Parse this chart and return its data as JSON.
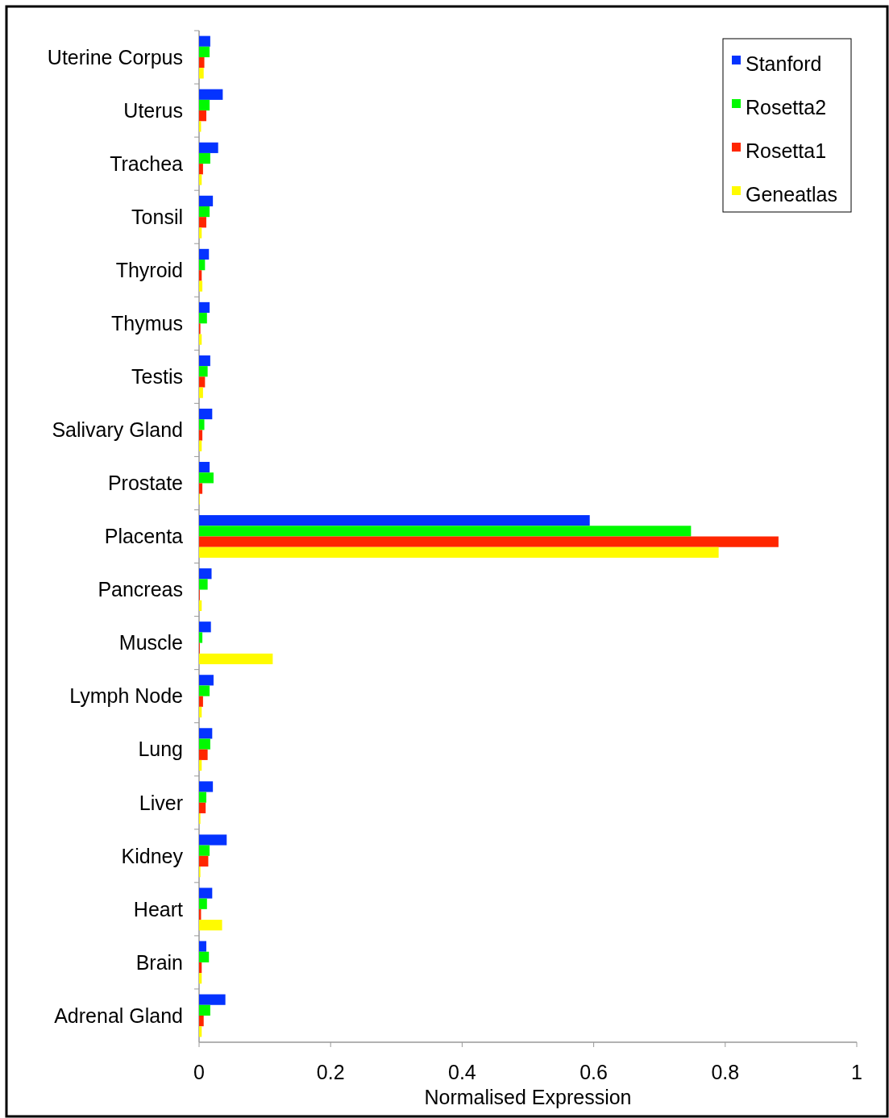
{
  "chart_data": {
    "type": "bar",
    "orientation": "horizontal",
    "xlabel": "Normalised Expression",
    "categories": [
      "Uterine Corpus",
      "Uterus",
      "Trachea",
      "Tonsil",
      "Thyroid",
      "Thymus",
      "Testis",
      "Salivary Gland",
      "Prostate",
      "Placenta",
      "Pancreas",
      "Muscle",
      "Lymph Node",
      "Lung",
      "Liver",
      "Kidney",
      "Heart",
      "Brain",
      "Adrenal Gland"
    ],
    "series": [
      {
        "name": "Stanford",
        "color": "#0433ff",
        "values": [
          0.017,
          0.036,
          0.029,
          0.021,
          0.015,
          0.016,
          0.017,
          0.02,
          0.016,
          0.594,
          0.019,
          0.018,
          0.022,
          0.02,
          0.021,
          0.042,
          0.02,
          0.011,
          0.04
        ]
      },
      {
        "name": "Rosetta2",
        "color": "#00f900",
        "values": [
          0.016,
          0.016,
          0.017,
          0.016,
          0.009,
          0.012,
          0.013,
          0.008,
          0.022,
          0.748,
          0.013,
          0.005,
          0.016,
          0.017,
          0.011,
          0.016,
          0.012,
          0.015,
          0.017
        ]
      },
      {
        "name": "Rosetta1",
        "color": "#ff2600",
        "values": [
          0.008,
          0.011,
          0.006,
          0.011,
          0.004,
          0.002,
          0.009,
          0.005,
          0.005,
          0.881,
          0.001,
          0.001,
          0.006,
          0.013,
          0.01,
          0.014,
          0.003,
          0.004,
          0.007
        ]
      },
      {
        "name": "Geneatlas",
        "color": "#fffb00",
        "values": [
          0.007,
          0.003,
          0.004,
          0.004,
          0.005,
          0.004,
          0.006,
          0.004,
          0.001,
          0.79,
          0.004,
          0.112,
          0.004,
          0.004,
          0.002,
          0.002,
          0.035,
          0.004,
          0.004
        ]
      }
    ],
    "xlim": [
      0,
      1
    ],
    "xticks": [
      0,
      0.2,
      0.4,
      0.6,
      0.8,
      1
    ],
    "legend": "top right",
    "grid": false
  }
}
